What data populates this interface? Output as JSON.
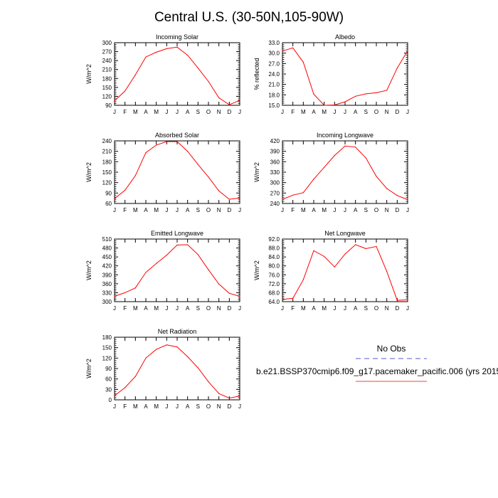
{
  "title": "Central U.S. (30-50N,105-90W)",
  "months": [
    "J",
    "F",
    "M",
    "A",
    "M",
    "J",
    "J",
    "A",
    "S",
    "O",
    "N",
    "D",
    "J"
  ],
  "legend": {
    "obs_label": "No Obs",
    "model_label": "b.e21.BSSP370cmip6.f09_g17.pacemaker_pacific.006 (yrs 2015",
    "obs_color": "#7b7bdc",
    "model_color": "#e8483a"
  },
  "chart_data": [
    {
      "type": "line",
      "title": "Incoming Solar",
      "ylabel": "W/m^2",
      "ylim": [
        90,
        300
      ],
      "yticks": [
        "90",
        "120",
        "150",
        "180",
        "210",
        "240",
        "270",
        "300"
      ],
      "x": [
        "J",
        "F",
        "M",
        "A",
        "M",
        "J",
        "J",
        "A",
        "S",
        "O",
        "N",
        "D",
        "J"
      ],
      "series": [
        {
          "values": [
            105,
            138,
            192,
            252,
            268,
            280,
            285,
            258,
            215,
            170,
            115,
            92,
            107
          ],
          "color": "#ff0000"
        }
      ]
    },
    {
      "type": "line",
      "title": "Albedo",
      "ylabel": "% reflected",
      "ylim": [
        15,
        33
      ],
      "yticks": [
        "15.0",
        "18.0",
        "21.0",
        "24.0",
        "27.0",
        "30.0",
        "33.0"
      ],
      "x": [
        "J",
        "F",
        "M",
        "A",
        "M",
        "J",
        "J",
        "A",
        "S",
        "O",
        "N",
        "D",
        "J"
      ],
      "series": [
        {
          "values": [
            30.6,
            31.5,
            27.4,
            18.2,
            15.0,
            15.1,
            16.0,
            17.6,
            18.3,
            18.6,
            19.3,
            25.7,
            30.7
          ],
          "color": "#ff0000"
        }
      ]
    },
    {
      "type": "line",
      "title": "Absorbed Solar",
      "ylabel": "W/m^2",
      "ylim": [
        60,
        240
      ],
      "yticks": [
        "60",
        "90",
        "120",
        "150",
        "180",
        "210",
        "240"
      ],
      "x": [
        "J",
        "F",
        "M",
        "A",
        "M",
        "J",
        "J",
        "A",
        "S",
        "O",
        "N",
        "D",
        "J"
      ],
      "series": [
        {
          "values": [
            74,
            98,
            140,
            206,
            228,
            238,
            238,
            210,
            172,
            136,
            96,
            72,
            76
          ],
          "color": "#ff0000"
        }
      ]
    },
    {
      "type": "line",
      "title": "Incoming Longwave",
      "ylabel": "W/m^2",
      "ylim": [
        240,
        420
      ],
      "yticks": [
        "240",
        "270",
        "300",
        "330",
        "360",
        "390",
        "420"
      ],
      "x": [
        "J",
        "F",
        "M",
        "A",
        "M",
        "J",
        "J",
        "A",
        "S",
        "O",
        "N",
        "D",
        "J"
      ],
      "series": [
        {
          "values": [
            252,
            264,
            271,
            310,
            344,
            378,
            405,
            402,
            371,
            318,
            283,
            263,
            251
          ],
          "color": "#ff0000"
        }
      ]
    },
    {
      "type": "line",
      "title": "Emitted Longwave",
      "ylabel": "W/m^2",
      "ylim": [
        300,
        510
      ],
      "yticks": [
        "300",
        "330",
        "360",
        "390",
        "420",
        "450",
        "480",
        "510"
      ],
      "x": [
        "J",
        "F",
        "M",
        "A",
        "M",
        "J",
        "J",
        "A",
        "S",
        "O",
        "N",
        "D",
        "J"
      ],
      "series": [
        {
          "values": [
            318,
            330,
            346,
            398,
            428,
            456,
            490,
            491,
            458,
            407,
            359,
            328,
            318
          ],
          "color": "#ff0000"
        }
      ]
    },
    {
      "type": "line",
      "title": "Net Longwave",
      "ylabel": "W/m^2",
      "ylim": [
        64,
        92
      ],
      "yticks": [
        "64.0",
        "68.0",
        "72.0",
        "76.0",
        "80.0",
        "84.0",
        "88.0",
        "92.0"
      ],
      "x": [
        "J",
        "F",
        "M",
        "A",
        "M",
        "J",
        "J",
        "A",
        "S",
        "O",
        "N",
        "D",
        "J"
      ],
      "series": [
        {
          "values": [
            65.0,
            65.5,
            73.8,
            86.8,
            84.2,
            79.5,
            85.3,
            89.5,
            87.7,
            88.7,
            77.5,
            64.6,
            64.8
          ],
          "color": "#ff0000"
        }
      ]
    },
    {
      "type": "line",
      "title": "Net Radiation",
      "ylabel": "W/m^2",
      "ylim": [
        0,
        180
      ],
      "yticks": [
        "0",
        "30",
        "60",
        "90",
        "120",
        "150",
        "180"
      ],
      "x": [
        "J",
        "F",
        "M",
        "A",
        "M",
        "J",
        "J",
        "A",
        "S",
        "O",
        "N",
        "D",
        "J"
      ],
      "series": [
        {
          "values": [
            12,
            35,
            67,
            120,
            145,
            158,
            152,
            124,
            92,
            52,
            18,
            5,
            11
          ],
          "color": "#ff0000"
        }
      ]
    }
  ]
}
